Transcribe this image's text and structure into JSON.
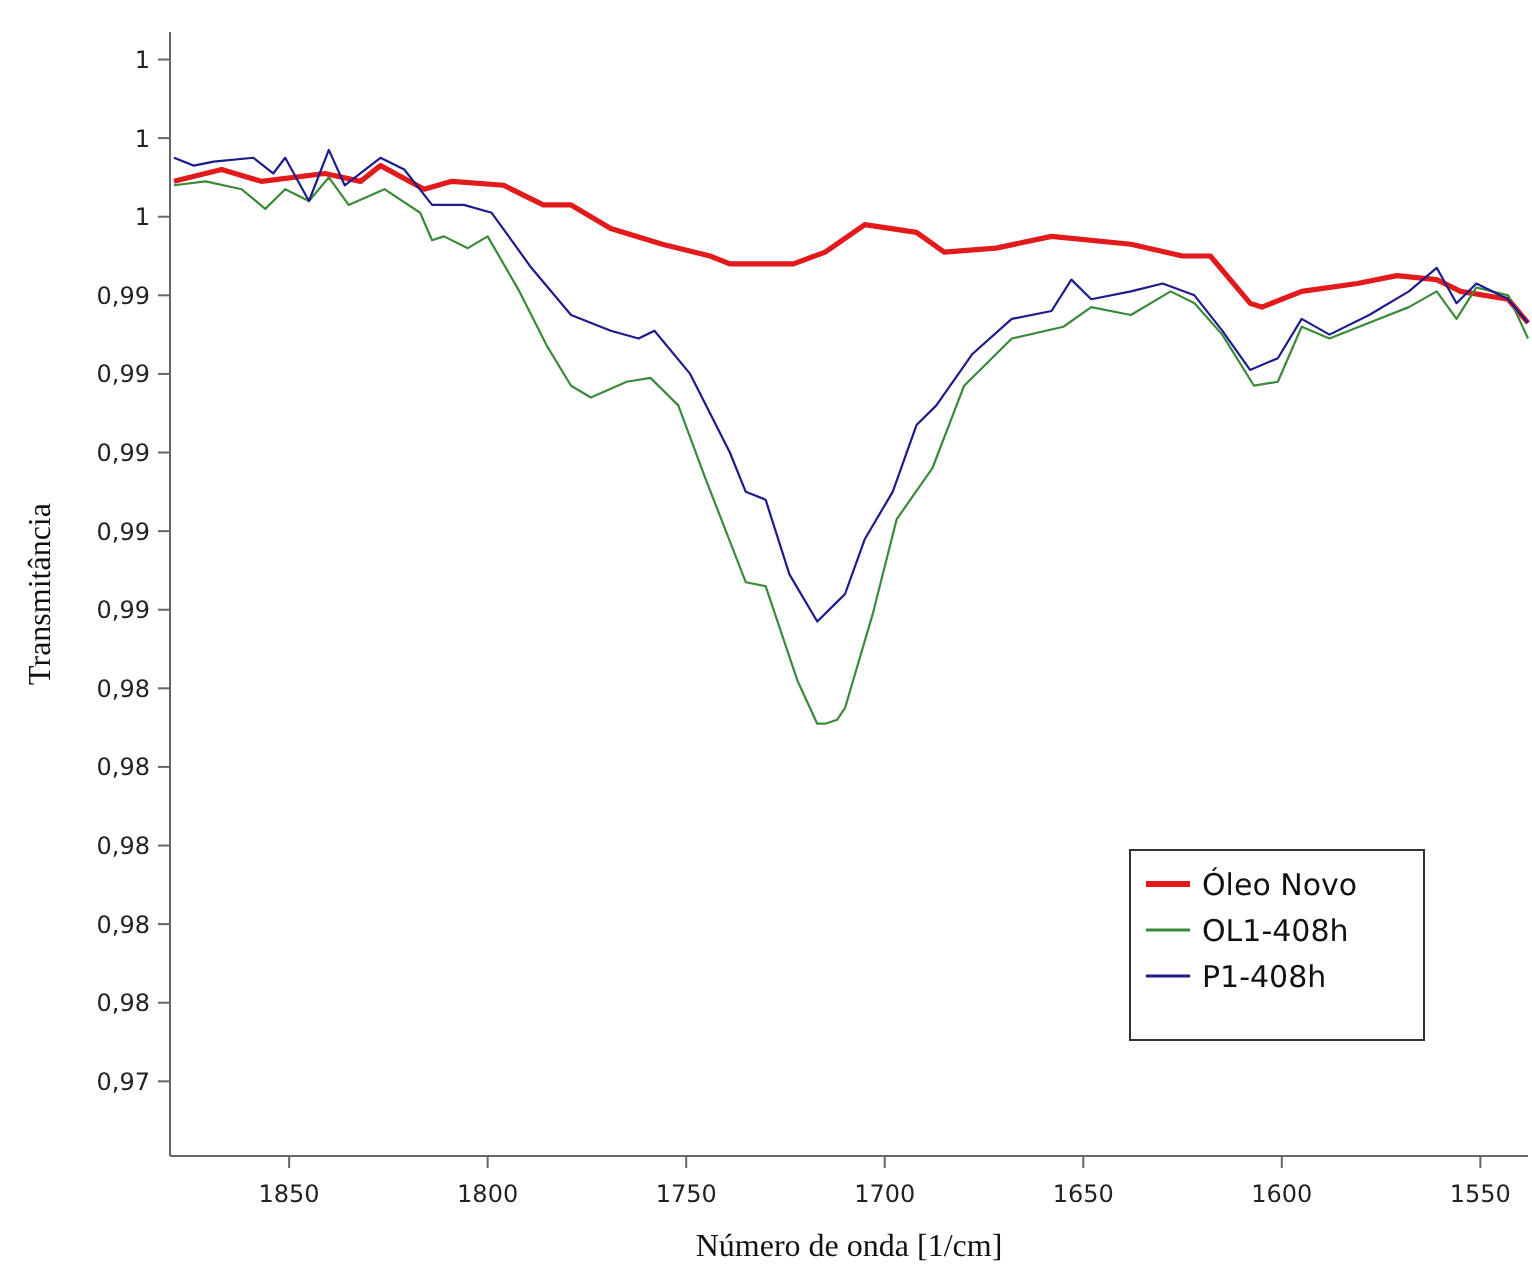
{
  "chart_data": {
    "type": "line",
    "xlabel": "Número de onda [1/cm]",
    "ylabel": "Transmitância",
    "xlim": [
      1880,
      1538
    ],
    "ylim": [
      0.9721,
      1.0007
    ],
    "xticks": [
      1850,
      1800,
      1750,
      1700,
      1650,
      1600,
      1550
    ],
    "yticks": [
      {
        "value": 1.0,
        "label": "1"
      },
      {
        "value": 0.998,
        "label": "1"
      },
      {
        "value": 0.996,
        "label": "1"
      },
      {
        "value": 0.994,
        "label": "0,99"
      },
      {
        "value": 0.992,
        "label": "0,99"
      },
      {
        "value": 0.99,
        "label": "0,99"
      },
      {
        "value": 0.988,
        "label": "0,99"
      },
      {
        "value": 0.986,
        "label": "0,99"
      },
      {
        "value": 0.984,
        "label": "0,98"
      },
      {
        "value": 0.982,
        "label": "0,98"
      },
      {
        "value": 0.98,
        "label": "0,98"
      },
      {
        "value": 0.978,
        "label": "0,98"
      },
      {
        "value": 0.976,
        "label": "0,98"
      },
      {
        "value": 0.974,
        "label": "0,97"
      }
    ],
    "grid": false,
    "legend": "bottom right",
    "marker": "none",
    "line_style": "solid",
    "series": [
      {
        "name": "Óleo Novo",
        "color": "#e31a1c",
        "x": [
          1879,
          1867,
          1857,
          1841,
          1832,
          1827,
          1816,
          1809,
          1796,
          1786,
          1779,
          1769,
          1756,
          1744,
          1739,
          1728,
          1723,
          1715,
          1705,
          1692,
          1685,
          1672,
          1658,
          1638,
          1625,
          1618,
          1608,
          1605,
          1595,
          1581,
          1571,
          1561,
          1555,
          1543,
          1538
        ],
        "values": [
          0.9969,
          0.9972,
          0.9969,
          0.9971,
          0.9969,
          0.9973,
          0.9967,
          0.9969,
          0.9968,
          0.9963,
          0.9963,
          0.9957,
          0.9953,
          0.995,
          0.9948,
          0.9948,
          0.9948,
          0.9951,
          0.9958,
          0.9956,
          0.9951,
          0.9952,
          0.9955,
          0.9953,
          0.995,
          0.995,
          0.9938,
          0.9937,
          0.9941,
          0.9943,
          0.9945,
          0.9944,
          0.9941,
          0.9939,
          0.9933
        ]
      },
      {
        "name": "OL1-408h",
        "color": "#3a8a3a",
        "x": [
          1879,
          1871,
          1862,
          1856,
          1851,
          1845,
          1840,
          1835,
          1826,
          1817,
          1814,
          1811,
          1805,
          1800,
          1792,
          1785,
          1779,
          1774,
          1765,
          1759,
          1752,
          1745,
          1735,
          1730,
          1722,
          1717,
          1715,
          1712,
          1710,
          1703,
          1697,
          1688,
          1680,
          1668,
          1655,
          1648,
          1638,
          1628,
          1622,
          1615,
          1607,
          1601,
          1595,
          1588,
          1578,
          1568,
          1561,
          1556,
          1551,
          1543,
          1538
        ],
        "values": [
          0.9968,
          0.9969,
          0.9967,
          0.9962,
          0.9967,
          0.9964,
          0.997,
          0.9963,
          0.9967,
          0.9961,
          0.9954,
          0.9955,
          0.9952,
          0.9955,
          0.9941,
          0.9927,
          0.9917,
          0.9914,
          0.9918,
          0.9919,
          0.9912,
          0.9893,
          0.9867,
          0.9866,
          0.9842,
          0.9831,
          0.9831,
          0.9832,
          0.9835,
          0.9859,
          0.9883,
          0.9896,
          0.9917,
          0.9929,
          0.9932,
          0.9937,
          0.9935,
          0.9941,
          0.9938,
          0.993,
          0.9917,
          0.9918,
          0.9932,
          0.9929,
          0.9933,
          0.9937,
          0.9941,
          0.9934,
          0.9942,
          0.994,
          0.9929
        ]
      },
      {
        "name": "P1-408h",
        "color": "#1c1c8c",
        "x": [
          1879,
          1874,
          1869,
          1859,
          1854,
          1851,
          1845,
          1840,
          1836,
          1827,
          1821,
          1814,
          1806,
          1799,
          1789,
          1779,
          1769,
          1762,
          1758,
          1749,
          1739,
          1735,
          1730,
          1724,
          1717,
          1712,
          1710,
          1705,
          1698,
          1692,
          1687,
          1678,
          1668,
          1658,
          1653,
          1648,
          1638,
          1630,
          1622,
          1615,
          1608,
          1601,
          1595,
          1588,
          1578,
          1568,
          1561,
          1556,
          1551,
          1543,
          1538
        ],
        "values": [
          0.9975,
          0.9973,
          0.9974,
          0.9975,
          0.9971,
          0.9975,
          0.9964,
          0.9977,
          0.9968,
          0.9975,
          0.9972,
          0.9963,
          0.9963,
          0.9961,
          0.9947,
          0.9935,
          0.9931,
          0.9929,
          0.9931,
          0.992,
          0.99,
          0.989,
          0.9888,
          0.9869,
          0.9857,
          0.9862,
          0.9864,
          0.9878,
          0.989,
          0.9907,
          0.9912,
          0.9925,
          0.9934,
          0.9936,
          0.9944,
          0.9939,
          0.9941,
          0.9943,
          0.994,
          0.9931,
          0.9921,
          0.9924,
          0.9934,
          0.993,
          0.9935,
          0.9941,
          0.9947,
          0.9938,
          0.9943,
          0.9939,
          0.9933
        ]
      }
    ]
  }
}
